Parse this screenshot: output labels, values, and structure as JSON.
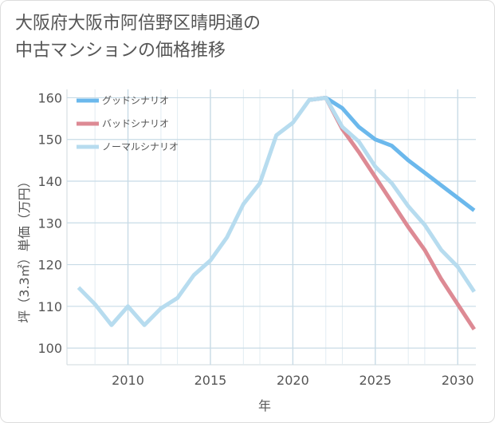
{
  "title": [
    "大阪府大阪市阿倍野区晴明通の",
    "中古マンションの価格推移"
  ],
  "chart_data": {
    "type": "line",
    "xlabel": "年",
    "ylabel": "坪（3.3㎡）単価（万円）",
    "xlim": [
      2006.3,
      2031.1
    ],
    "ylim": [
      96,
      162
    ],
    "xticks": [
      2010,
      2015,
      2020,
      2025,
      2030
    ],
    "yticks": [
      100,
      110,
      120,
      130,
      140,
      150,
      160
    ],
    "grid": true,
    "legend_position": "top-left",
    "series": [
      {
        "name": "グッドシナリオ",
        "color": "#6bb8ec",
        "x": [
          2021,
          2022,
          2023,
          2024,
          2025,
          2026,
          2027,
          2028,
          2029,
          2030,
          2031
        ],
        "y": [
          159.5,
          160,
          157.5,
          153,
          150,
          148.5,
          145,
          142,
          139,
          136,
          133
        ]
      },
      {
        "name": "バッドシナリオ",
        "color": "#dd8a94",
        "x": [
          2021,
          2022,
          2023,
          2024,
          2025,
          2026,
          2027,
          2028,
          2029,
          2030,
          2031
        ],
        "y": [
          159.5,
          160,
          152.5,
          147,
          141,
          135,
          129,
          123.5,
          116.5,
          110.5,
          104.5
        ]
      },
      {
        "name": "ノーマルシナリオ",
        "color": "#b7dcef",
        "x": [
          2007,
          2008,
          2009,
          2010,
          2011,
          2012,
          2013,
          2014,
          2015,
          2016,
          2017,
          2018,
          2019,
          2020,
          2021,
          2022,
          2023,
          2024,
          2025,
          2026,
          2027,
          2028,
          2029,
          2030,
          2031
        ],
        "y": [
          114.5,
          110.5,
          105.5,
          110,
          105.5,
          109.5,
          112,
          117.5,
          121,
          126.5,
          134.5,
          139.5,
          151,
          154,
          159.5,
          160,
          153,
          149.5,
          143.5,
          139.5,
          134,
          129.5,
          123.5,
          119.5,
          113.5
        ]
      }
    ]
  }
}
